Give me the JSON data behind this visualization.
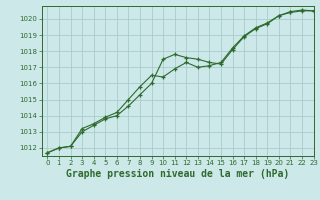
{
  "title": "Graphe pression niveau de la mer (hPa)",
  "background_color": "#cce8e8",
  "grid_color": "#aacccc",
  "line_color": "#2d6a2d",
  "xlim": [
    -0.5,
    23
  ],
  "ylim": [
    1011.5,
    1020.8
  ],
  "yticks": [
    1012,
    1013,
    1014,
    1015,
    1016,
    1017,
    1018,
    1019,
    1020
  ],
  "xticks": [
    0,
    1,
    2,
    3,
    4,
    5,
    6,
    7,
    8,
    9,
    10,
    11,
    12,
    13,
    14,
    15,
    16,
    17,
    18,
    19,
    20,
    21,
    22,
    23
  ],
  "line1_x": [
    0,
    1,
    2,
    3,
    4,
    5,
    6,
    7,
    8,
    9,
    10,
    11,
    12,
    13,
    14,
    15,
    16,
    17,
    18,
    19,
    20,
    21,
    22,
    23
  ],
  "line1_y": [
    1011.7,
    1012.0,
    1012.1,
    1013.0,
    1013.4,
    1013.8,
    1014.0,
    1014.6,
    1015.3,
    1016.0,
    1017.5,
    1017.8,
    1017.6,
    1017.5,
    1017.3,
    1017.2,
    1018.1,
    1018.9,
    1019.4,
    1019.7,
    1020.2,
    1020.4,
    1020.5,
    1020.5
  ],
  "line2_x": [
    0,
    1,
    2,
    3,
    4,
    5,
    6,
    7,
    8,
    9,
    10,
    11,
    12,
    13,
    14,
    15,
    16,
    17,
    18,
    19,
    20,
    21,
    22,
    23
  ],
  "line2_y": [
    1011.7,
    1012.0,
    1012.1,
    1013.2,
    1013.5,
    1013.9,
    1014.2,
    1015.0,
    1015.8,
    1016.5,
    1016.4,
    1016.9,
    1017.3,
    1017.0,
    1017.1,
    1017.3,
    1018.2,
    1018.95,
    1019.45,
    1019.75,
    1020.2,
    1020.45,
    1020.55,
    1020.5
  ],
  "tick_labelsize": 5,
  "xlabel_fontsize": 7
}
